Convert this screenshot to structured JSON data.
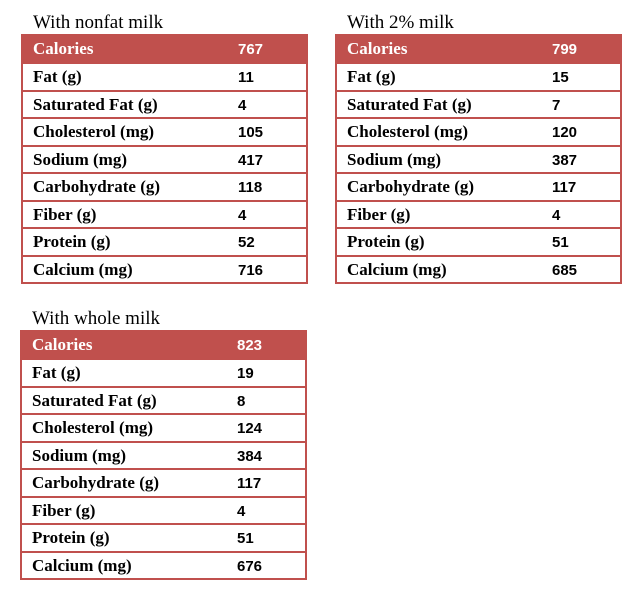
{
  "tables": [
    {
      "title": "With nonfat milk",
      "header": [
        "Calories",
        767
      ],
      "rows": [
        [
          "Fat (g)",
          11
        ],
        [
          "Saturated Fat (g)",
          4
        ],
        [
          "Cholesterol (mg)",
          105
        ],
        [
          "Sodium (mg)",
          417
        ],
        [
          "Carbohydrate (g)",
          118
        ],
        [
          "Fiber (g)",
          4
        ],
        [
          "Protein (g)",
          52
        ],
        [
          "Calcium (mg)",
          716
        ]
      ]
    },
    {
      "title": "With 2% milk",
      "header": [
        "Calories",
        799
      ],
      "rows": [
        [
          "Fat (g)",
          15
        ],
        [
          "Saturated Fat (g)",
          7
        ],
        [
          "Cholesterol (mg)",
          120
        ],
        [
          "Sodium (mg)",
          387
        ],
        [
          "Carbohydrate (g)",
          117
        ],
        [
          "Fiber (g)",
          4
        ],
        [
          "Protein (g)",
          51
        ],
        [
          "Calcium (mg)",
          685
        ]
      ]
    },
    {
      "title": "With whole milk",
      "header": [
        "Calories",
        823
      ],
      "rows": [
        [
          "Fat (g)",
          19
        ],
        [
          "Saturated Fat (g)",
          8
        ],
        [
          "Cholesterol (mg)",
          124
        ],
        [
          "Sodium (mg)",
          384
        ],
        [
          "Carbohydrate (g)",
          117
        ],
        [
          "Fiber (g)",
          4
        ],
        [
          "Protein (g)",
          51
        ],
        [
          "Calcium (mg)",
          676
        ]
      ]
    }
  ]
}
